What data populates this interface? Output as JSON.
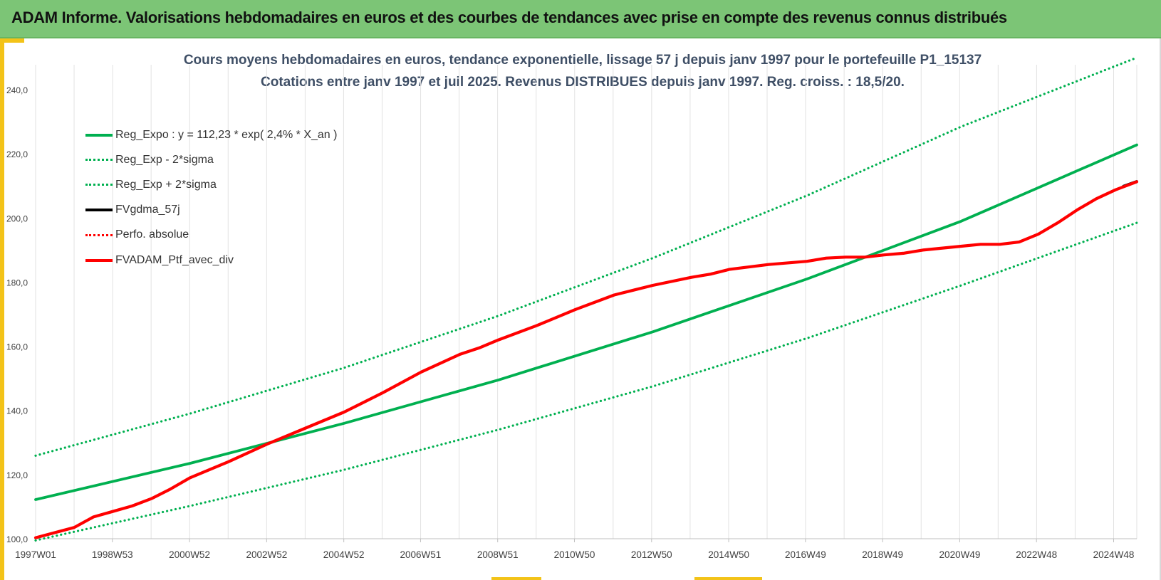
{
  "header": {
    "title": "ADAM Informe. Valorisations hebdomadaires en euros et des courbes de tendances avec prise en compte des revenus connus distribués"
  },
  "chart_data": {
    "type": "line",
    "title": "Cours moyens hebdomadaires  en euros, tendance exponentielle, lissage 57 j depuis janv 1997 pour le portefeuille P1_15137",
    "subtitle": "Cotations entre janv 1997 et juil 2025. Revenus DISTRIBUES depuis janv 1997. Reg. croiss. : 18,5/20.",
    "xlabel": "",
    "ylabel": "",
    "x_range": [
      1997.0,
      2025.55
    ],
    "ylim": [
      100,
      250
    ],
    "y_ticks": [
      "100,0",
      "120,0",
      "140,0",
      "160,0",
      "180,0",
      "200,0",
      "220,0",
      "240,0"
    ],
    "y_tick_values": [
      100,
      120,
      140,
      160,
      180,
      200,
      220,
      240
    ],
    "x_tick_labels": [
      "1997W01",
      "1998W53",
      "2000W52",
      "2002W52",
      "2004W52",
      "2006W51",
      "2008W51",
      "2010W50",
      "2012W50",
      "2014W50",
      "2016W49",
      "2018W49",
      "2020W49",
      "2022W48",
      "2024W48"
    ],
    "x_tick_values": [
      1997.0,
      1998.99,
      2000.99,
      2002.99,
      2004.99,
      2006.98,
      2008.98,
      2010.97,
      2012.97,
      2014.97,
      2016.96,
      2018.96,
      2020.96,
      2022.95,
      2024.95
    ],
    "grid": "vertical",
    "legend_position": "top-left",
    "series": [
      {
        "name": "Reg_Expo : y = 112,23 * exp( 2,4% *  X_an )",
        "style": "solid",
        "color": "#00b050",
        "x": [
          1997.0,
          2001.0,
          2005.0,
          2009.0,
          2013.0,
          2017.0,
          2021.0,
          2025.55
        ],
        "y": [
          112.2,
          123.5,
          136.0,
          149.5,
          164.5,
          181.0,
          199.0,
          222.8
        ]
      },
      {
        "name": "Reg_Exp - 2*sigma",
        "style": "dotted",
        "color": "#00b050",
        "x": [
          1997.0,
          2001.0,
          2005.0,
          2009.0,
          2013.0,
          2017.0,
          2021.0,
          2025.55
        ],
        "y": [
          99.5,
          110.2,
          121.5,
          134.0,
          147.5,
          162.5,
          179.0,
          198.5
        ]
      },
      {
        "name": "Reg_Exp + 2*sigma",
        "style": "dotted",
        "color": "#00b050",
        "x": [
          1997.0,
          2001.0,
          2005.0,
          2009.0,
          2013.0,
          2017.0,
          2021.0,
          2025.55
        ],
        "y": [
          125.9,
          139.0,
          153.3,
          169.5,
          187.5,
          207.0,
          228.5,
          250.0
        ]
      },
      {
        "name": "FVgdma_57j",
        "style": "solid",
        "color": "#000000",
        "x": [
          2025.2,
          2025.55
        ],
        "y": [
          210.0,
          211.5
        ]
      },
      {
        "name": "Perfo. absolue",
        "style": "dotted",
        "color": "#ff0000",
        "x": [],
        "y": []
      },
      {
        "name": "FVADAM_Ptf_avec_div",
        "style": "solid",
        "color": "#ff0000",
        "x": [
          1997.0,
          1998.0,
          1998.5,
          1999.0,
          1999.5,
          2000.0,
          2000.5,
          2001.0,
          2002.0,
          2003.0,
          2004.0,
          2005.0,
          2006.0,
          2007.0,
          2008.0,
          2008.5,
          2009.0,
          2010.0,
          2011.0,
          2012.0,
          2013.0,
          2014.0,
          2014.5,
          2015.0,
          2016.0,
          2017.0,
          2017.5,
          2018.0,
          2018.5,
          2019.0,
          2019.5,
          2020.0,
          2021.0,
          2021.5,
          2022.0,
          2022.5,
          2023.0,
          2023.5,
          2024.0,
          2024.5,
          2025.0,
          2025.55
        ],
        "y": [
          100.3,
          103.5,
          106.8,
          108.5,
          110.2,
          112.5,
          115.5,
          119.0,
          124.0,
          129.5,
          134.5,
          139.5,
          145.5,
          152.0,
          157.5,
          159.5,
          162.0,
          166.5,
          171.5,
          176.0,
          179.0,
          181.5,
          182.5,
          184.0,
          185.5,
          186.5,
          187.5,
          187.8,
          187.8,
          188.5,
          189.0,
          190.0,
          191.2,
          191.8,
          191.8,
          192.5,
          195.0,
          198.5,
          202.5,
          206.0,
          208.8,
          211.3
        ]
      }
    ]
  }
}
